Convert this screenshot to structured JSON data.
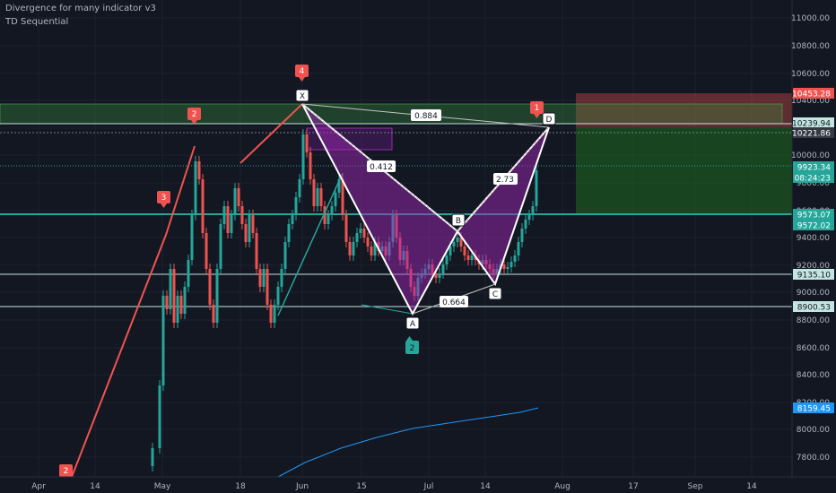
{
  "indicators": [
    "Divergence for many indicator v3",
    "TD Sequential"
  ],
  "colors": {
    "background": "#131722",
    "grid": "#1e222d",
    "up": "#26a69a",
    "down": "#ef5350",
    "pattern_fill": "#9c27b0",
    "teal_line": "#26a69a",
    "ma_line": "#2196f3"
  },
  "price_axis": {
    "ticks": [
      "11000.00",
      "10800.00",
      "10600.00",
      "10400.00",
      "10200.00",
      "10000.00",
      "9800.00",
      "9600.00",
      "9400.00",
      "9200.00",
      "9000.00",
      "8800.00",
      "8600.00",
      "8400.00",
      "8200.00",
      "8000.00",
      "7800.00"
    ]
  },
  "price_tags": [
    {
      "text": "10453.28",
      "bg": "#ef5350",
      "fg": "#ffffff"
    },
    {
      "text": "10239.94",
      "bg": "#c4e6e3",
      "fg": "#131722"
    },
    {
      "text": "10221.86",
      "bg": "#363a45",
      "fg": "#ffffff"
    },
    {
      "text": "9923.34",
      "bg": "#26a69a",
      "fg": "#ffffff"
    },
    {
      "text": "08:24:23",
      "bg": "#26a69a",
      "fg": "#ffffff"
    },
    {
      "text": "9573.07",
      "bg": "#26a69a",
      "fg": "#ffffff"
    },
    {
      "text": "9572.02",
      "bg": "#26a69a",
      "fg": "#ffffff"
    },
    {
      "text": "9135.10",
      "bg": "#c4e6e3",
      "fg": "#131722"
    },
    {
      "text": "8900.53",
      "bg": "#c4e6e3",
      "fg": "#131722"
    },
    {
      "text": "8159.45",
      "bg": "#2196f3",
      "fg": "#ffffff"
    }
  ],
  "time_axis": {
    "ticks": [
      "Apr",
      "14",
      "May",
      "18",
      "Jun",
      "15",
      "Jul",
      "14",
      "Aug",
      "17",
      "Sep",
      "14"
    ]
  },
  "pattern": {
    "points": [
      "X",
      "A",
      "B",
      "C",
      "D"
    ],
    "ratios": [
      "0.884",
      "0.412",
      "2.73",
      "0.664"
    ]
  },
  "td_labels": [
    "4",
    "2",
    "3",
    "2",
    "1"
  ],
  "td_buy_label": "2"
}
